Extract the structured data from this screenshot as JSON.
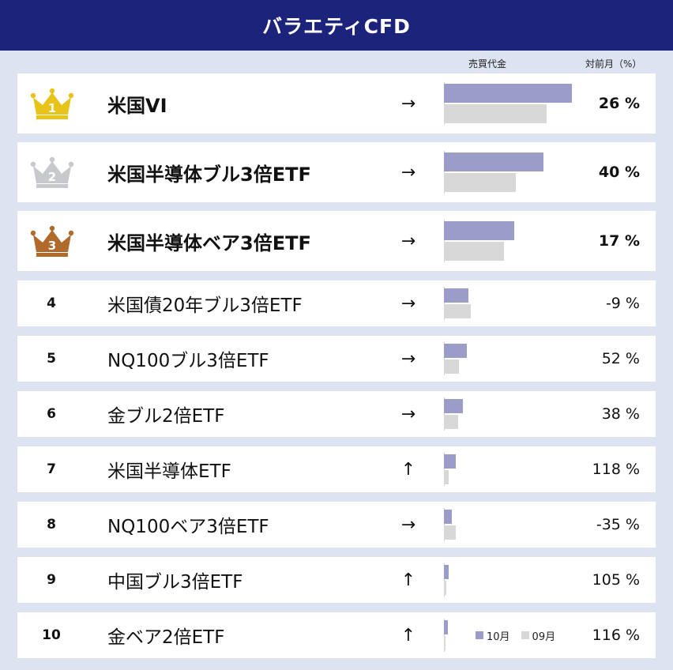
{
  "header": {
    "title": "バラエティCFD"
  },
  "columns": {
    "volume": "売買代金",
    "mom": "対前月（%）"
  },
  "legend": [
    {
      "label": "10月",
      "color": "#9c9cc8"
    },
    {
      "label": "09月",
      "color": "#d8d8d8"
    }
  ],
  "chart_data": {
    "type": "bar",
    "title": "バラエティCFD",
    "xlabel": "売買代金",
    "ylabel": "",
    "series_names": [
      "10月",
      "09月"
    ],
    "rows": [
      {
        "rank": "1",
        "name": "米国VI",
        "trend": "→",
        "mom": "26 %",
        "oct": 100,
        "sep": 80
      },
      {
        "rank": "2",
        "name": "米国半導体ブル3倍ETF",
        "trend": "→",
        "mom": "40 %",
        "oct": 78,
        "sep": 56
      },
      {
        "rank": "3",
        "name": "米国半導体ベア3倍ETF",
        "trend": "→",
        "mom": "17 %",
        "oct": 55,
        "sep": 47
      },
      {
        "rank": "4",
        "name": "米国債20年ブル3倍ETF",
        "trend": "→",
        "mom": "-9 %",
        "oct": 19,
        "sep": 21
      },
      {
        "rank": "5",
        "name": "NQ100ブル3倍ETF",
        "trend": "→",
        "mom": "52 %",
        "oct": 18,
        "sep": 12
      },
      {
        "rank": "6",
        "name": "金ブル2倍ETF",
        "trend": "→",
        "mom": "38 %",
        "oct": 15,
        "sep": 11
      },
      {
        "rank": "7",
        "name": "米国半導体ETF",
        "trend": "↑",
        "mom": "118 %",
        "oct": 9,
        "sep": 4
      },
      {
        "rank": "8",
        "name": "NQ100ベア3倍ETF",
        "trend": "→",
        "mom": "-35 %",
        "oct": 6,
        "sep": 9
      },
      {
        "rank": "9",
        "name": "中国ブル3倍ETF",
        "trend": "↑",
        "mom": "105 %",
        "oct": 4,
        "sep": 2
      },
      {
        "rank": "10",
        "name": "金ベア2倍ETF",
        "trend": "↑",
        "mom": "116 %",
        "oct": 3,
        "sep": 1.5
      }
    ]
  },
  "colors": {
    "header_bg": "#1c237a",
    "gold": "#e8c31a",
    "silver": "#c8c9cc",
    "bronze": "#b06a2c",
    "oct_bar": "#9c9cc8",
    "sep_bar": "#d8d8d8"
  }
}
